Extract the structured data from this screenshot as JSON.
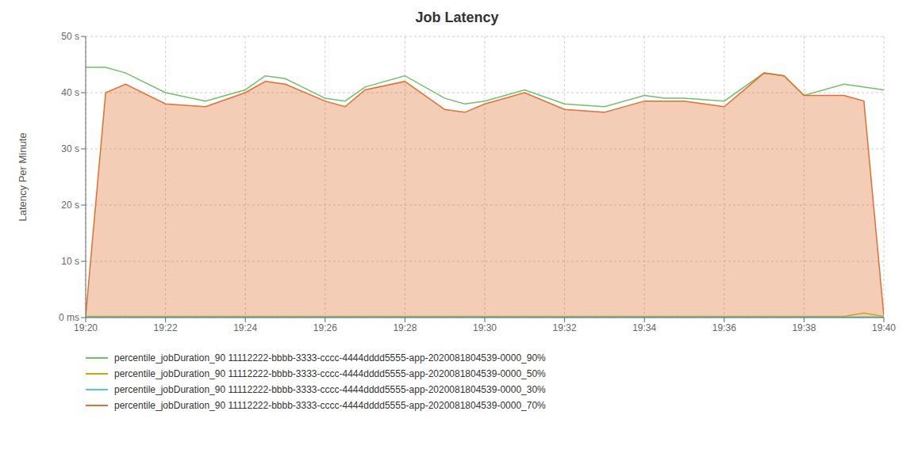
{
  "chart_data": {
    "type": "line",
    "title": "Job Latency",
    "y_label": "Latency Per Minute",
    "xlim": [
      0,
      20
    ],
    "xticks": [
      {
        "value": 0,
        "label": "19:20"
      },
      {
        "value": 2,
        "label": "19:22"
      },
      {
        "value": 4,
        "label": "19:24"
      },
      {
        "value": 6,
        "label": "19:26"
      },
      {
        "value": 8,
        "label": "19:28"
      },
      {
        "value": 10,
        "label": "19:30"
      },
      {
        "value": 12,
        "label": "19:32"
      },
      {
        "value": 14,
        "label": "19:34"
      },
      {
        "value": 16,
        "label": "19:36"
      },
      {
        "value": 18,
        "label": "19:38"
      },
      {
        "value": 20,
        "label": "19:40"
      }
    ],
    "ylim": [
      0,
      50
    ],
    "yticks": [
      {
        "value": 0,
        "label": "0 ms"
      },
      {
        "value": 10,
        "label": "10 s"
      },
      {
        "value": 20,
        "label": "20 s"
      },
      {
        "value": 30,
        "label": "30 s"
      },
      {
        "value": 40,
        "label": "40 s"
      },
      {
        "value": 50,
        "label": "50 s"
      }
    ],
    "grid": true,
    "legend": "bottom",
    "series": [
      {
        "name": "percentile_jobDuration_90 11112222-bbbb-3333-cccc-4444dddd5555-app-2020081804539-0000_90%",
        "color": "#73bf69",
        "type": "line",
        "x": [
          0,
          0.5,
          1.0,
          2.0,
          3.0,
          4.0,
          4.5,
          5.0,
          6.0,
          6.5,
          7.0,
          8.0,
          9.0,
          9.5,
          10.0,
          11.0,
          12.0,
          13.0,
          14.0,
          14.5,
          15.0,
          16.0,
          17.0,
          17.5,
          18.0,
          19.0,
          20.0
        ],
        "values": [
          44.5,
          44.5,
          43.5,
          40.0,
          38.5,
          40.5,
          43.0,
          42.5,
          39.0,
          38.5,
          41.0,
          43.0,
          39.0,
          38.0,
          38.5,
          40.5,
          38.0,
          37.5,
          39.5,
          39.0,
          39.0,
          38.5,
          43.5,
          43.0,
          39.5,
          41.5,
          40.5
        ]
      },
      {
        "name": "percentile_jobDuration_90 11112222-bbbb-3333-cccc-4444dddd5555-app-2020081804539-0000_50%",
        "color": "#ccaa00",
        "type": "line",
        "x": [
          0,
          19.0,
          19.5,
          20.0
        ],
        "values": [
          0.2,
          0.2,
          0.8,
          0.2
        ]
      },
      {
        "name": "percentile_jobDuration_90 11112222-bbbb-3333-cccc-4444dddd5555-app-2020081804539-0000_30%",
        "color": "#56c8d8",
        "type": "line",
        "x": [
          0,
          20.0
        ],
        "values": [
          0.1,
          0.1
        ]
      },
      {
        "name": "percentile_jobDuration_90 11112222-bbbb-3333-cccc-4444dddd5555-app-2020081804539-0000_70%",
        "color": "#e07030",
        "type": "area",
        "x": [
          0,
          0.5,
          1.0,
          2.0,
          3.0,
          4.0,
          4.5,
          5.0,
          6.0,
          6.5,
          7.0,
          8.0,
          9.0,
          9.5,
          10.0,
          11.0,
          12.0,
          13.0,
          14.0,
          14.5,
          15.0,
          16.0,
          17.0,
          17.5,
          18.0,
          19.0,
          19.5,
          20.0
        ],
        "values": [
          0.3,
          40.0,
          41.5,
          38.0,
          37.5,
          40.0,
          42.0,
          41.5,
          38.5,
          37.5,
          40.5,
          42.0,
          37.0,
          36.5,
          38.0,
          40.0,
          37.0,
          36.5,
          38.5,
          38.5,
          38.5,
          37.5,
          43.5,
          43.0,
          39.5,
          39.5,
          38.5,
          0.3
        ]
      }
    ]
  }
}
